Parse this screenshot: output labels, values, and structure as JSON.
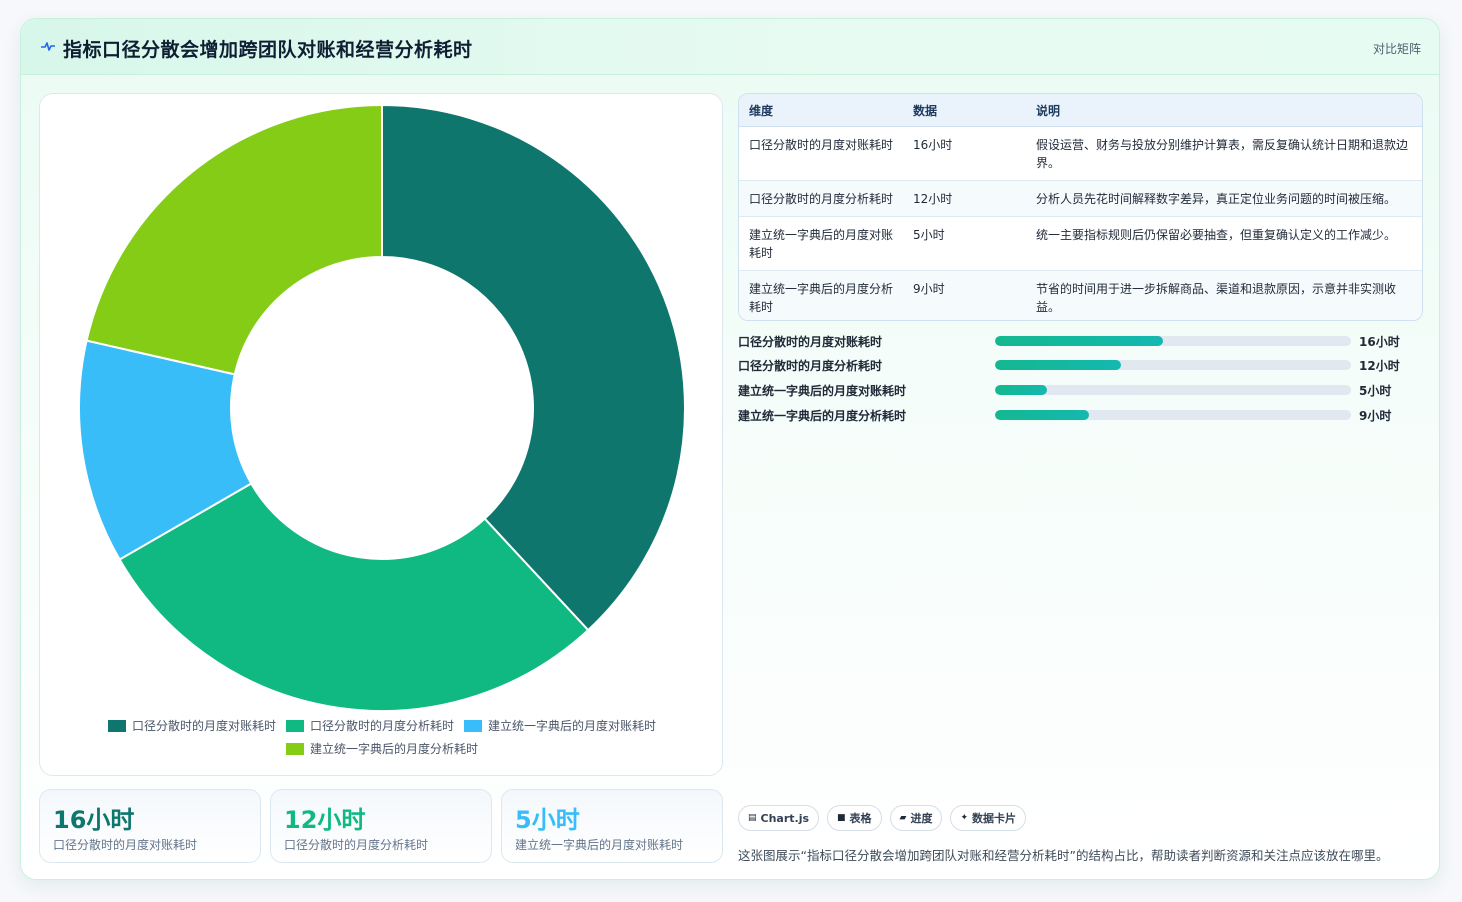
{
  "header": {
    "title": "指标口径分散会增加跨团队对账和经营分析耗时",
    "icon": "pulse-icon",
    "link_label": "对比矩阵"
  },
  "chart_data": {
    "type": "pie",
    "donut": true,
    "categories": [
      "口径分散时的月度对账耗时",
      "口径分散时的月度分析耗时",
      "建立统一字典后的月度对账耗时",
      "建立统一字典后的月度分析耗时"
    ],
    "values": [
      16,
      12,
      5,
      9
    ],
    "unit": "小时",
    "colors": [
      "#0f766e",
      "#10b981",
      "#38bdf8",
      "#84cc16"
    ],
    "legend_position": "bottom"
  },
  "kpis": [
    {
      "value": "16小时",
      "label": "口径分散时的月度对账耗时",
      "color": "#0f766e"
    },
    {
      "value": "12小时",
      "label": "口径分散时的月度分析耗时",
      "color": "#10b981"
    },
    {
      "value": "5小时",
      "label": "建立统一字典后的月度对账耗时",
      "color": "#38bdf8"
    }
  ],
  "table": {
    "headers": [
      "维度",
      "数据",
      "说明"
    ],
    "rows": [
      [
        "口径分散时的月度对账耗时",
        "16小时",
        "假设运营、财务与投放分别维护计算表，需反复确认统计日期和退款边界。"
      ],
      [
        "口径分散时的月度分析耗时",
        "12小时",
        "分析人员先花时间解释数字差异，真正定位业务问题的时间被压缩。"
      ],
      [
        "建立统一字典后的月度对账耗时",
        "5小时",
        "统一主要指标规则后仍保留必要抽查，但重复确认定义的工作减少。"
      ],
      [
        "建立统一字典后的月度分析耗时",
        "9小时",
        "节省的时间用于进一步拆解商品、渠道和退款原因，示意并非实测收益。"
      ]
    ]
  },
  "progress": {
    "max": 34,
    "items": [
      {
        "label": "口径分散时的月度对账耗时",
        "value": 16,
        "display": "16小时"
      },
      {
        "label": "口径分散时的月度分析耗时",
        "value": 12,
        "display": "12小时"
      },
      {
        "label": "建立统一字典后的月度对账耗时",
        "value": 5,
        "display": "5小时"
      },
      {
        "label": "建立统一字典后的月度分析耗时",
        "value": 9,
        "display": "9小时"
      }
    ]
  },
  "tags": [
    {
      "icon": "▤",
      "label": "Chart.js"
    },
    {
      "icon": "■",
      "label": "表格"
    },
    {
      "icon": "▰",
      "label": "进度"
    },
    {
      "icon": "✦",
      "label": "数据卡片"
    }
  ],
  "caption": "这张图展示“指标口径分散会增加跨团队对账和经营分析耗时”的结构占比，帮助读者判断资源和关注点应该放在哪里。"
}
